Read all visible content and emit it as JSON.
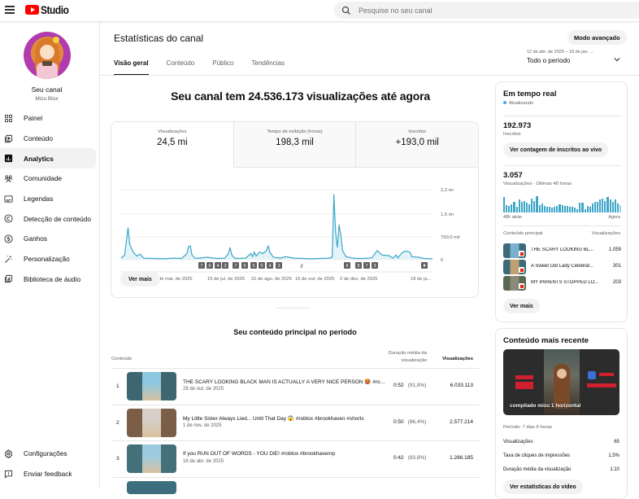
{
  "app": {
    "name": "Studio"
  },
  "search": {
    "placeholder": "Pesquise no seu canal"
  },
  "channel": {
    "label": "Seu canal",
    "handle": "Mizu Blox"
  },
  "sidebar": {
    "items": [
      {
        "label": "Painel",
        "icon": "dashboard-icon"
      },
      {
        "label": "Conteúdo",
        "icon": "content-icon"
      },
      {
        "label": "Analytics",
        "icon": "analytics-icon",
        "active": true
      },
      {
        "label": "Comunidade",
        "icon": "community-icon"
      },
      {
        "label": "Legendas",
        "icon": "subtitles-icon"
      },
      {
        "label": "Detecção de conteúdo",
        "icon": "copyright-icon"
      },
      {
        "label": "Ganhos",
        "icon": "earnings-icon"
      },
      {
        "label": "Personalização",
        "icon": "customization-icon"
      },
      {
        "label": "Biblioteca de áudio",
        "icon": "audio-library-icon"
      }
    ],
    "bottom": [
      {
        "label": "Configurações",
        "icon": "settings-icon"
      },
      {
        "label": "Enviar feedback",
        "icon": "feedback-icon"
      }
    ]
  },
  "header": {
    "title": "Estatísticas do canal",
    "tabs": [
      "Visão geral",
      "Conteúdo",
      "Público",
      "Tendências"
    ],
    "advanced_mode": "Modo avançado",
    "date_range": "12 de abr. de 2025 – 18 de jan. ...",
    "period": "Todo o período"
  },
  "overview": {
    "headline": "Seu canal tem 24.536.173 visualizações até agora",
    "metrics": [
      {
        "label": "Visualizações",
        "value": "24,5 mi"
      },
      {
        "label": "Tempo de exibição (horas)",
        "value": "198,3 mil"
      },
      {
        "label": "Inscritos",
        "value": "+193,0 mil"
      }
    ],
    "see_more": "Ver mais"
  },
  "chart_data": {
    "type": "area",
    "title": "Visualizações",
    "y_ticks": [
      "0",
      "750,0 mil",
      "1,5 mi",
      "2,3 mi"
    ],
    "ylim": [
      0,
      2300000
    ],
    "x_ticks": [
      "12 de ab...",
      "29 de mai. de 2025",
      "15 de jul. de 2025",
      "31 de ago. de 2025",
      "16 de out. de 2025",
      "2 de dez. de 2025",
      "18 de ja..."
    ],
    "series": [
      {
        "name": "Visualizações",
        "points": [
          [
            0,
            50000
          ],
          [
            2,
            150000
          ],
          [
            3,
            600000
          ],
          [
            4,
            1050000
          ],
          [
            5,
            500000
          ],
          [
            7,
            250000
          ],
          [
            9,
            120000
          ],
          [
            11,
            180000
          ],
          [
            13,
            50000
          ],
          [
            18,
            40000
          ],
          [
            25,
            30000
          ],
          [
            30,
            50000
          ],
          [
            35,
            40000
          ],
          [
            38,
            200000
          ],
          [
            39,
            430000
          ],
          [
            40,
            450000
          ],
          [
            41,
            150000
          ],
          [
            43,
            40000
          ],
          [
            50,
            80000
          ],
          [
            55,
            40000
          ],
          [
            60,
            50000
          ],
          [
            62,
            200000
          ],
          [
            63,
            400000
          ],
          [
            64,
            150000
          ],
          [
            66,
            40000
          ],
          [
            72,
            50000
          ],
          [
            75,
            200000
          ],
          [
            76,
            100000
          ],
          [
            77,
            250000
          ],
          [
            78,
            120000
          ],
          [
            80,
            250000
          ],
          [
            82,
            200000
          ],
          [
            84,
            300000
          ],
          [
            85,
            450000
          ],
          [
            86,
            250000
          ],
          [
            88,
            80000
          ],
          [
            92,
            50000
          ],
          [
            95,
            100000
          ],
          [
            97,
            80000
          ],
          [
            100,
            50000
          ],
          [
            105,
            40000
          ],
          [
            110,
            30000
          ],
          [
            115,
            40000
          ],
          [
            120,
            50000
          ],
          [
            122,
            80000
          ],
          [
            123,
            2150000
          ],
          [
            124,
            900000
          ],
          [
            125,
            400000
          ],
          [
            126,
            1150000
          ],
          [
            127,
            800000
          ],
          [
            128,
            300000
          ],
          [
            130,
            100000
          ],
          [
            135,
            40000
          ],
          [
            140,
            40000
          ],
          [
            145,
            60000
          ],
          [
            148,
            300000
          ],
          [
            149,
            250000
          ],
          [
            151,
            150000
          ],
          [
            155,
            130000
          ],
          [
            157,
            50000
          ],
          [
            159,
            150000
          ],
          [
            160,
            60000
          ],
          [
            162,
            200000
          ],
          [
            163,
            250000
          ],
          [
            165,
            280000
          ],
          [
            167,
            250000
          ],
          [
            168,
            100000
          ],
          [
            172,
            80000
          ],
          [
            175,
            40000
          ],
          [
            180,
            30000
          ]
        ]
      }
    ],
    "annotations": [
      "7",
      "6",
      "4",
      "3",
      "7",
      "5",
      "5",
      "5",
      "4",
      "3",
      "6",
      "8",
      "7",
      "3"
    ],
    "grid": true,
    "legend": "none"
  },
  "top_content": {
    "title": "Seu conteúdo principal no período",
    "columns": [
      "Conteúdo",
      "Duração média da visualização",
      "Visualizações"
    ],
    "rows": [
      {
        "rank": "1",
        "title": "THE SCARY LOOKING BLACK MAN IS ACTUALLY A VERY NICE PERSON 🥵 #robl...",
        "date": "28 de out. de 2025",
        "duration": "0:52",
        "pct": "(91,8%)",
        "views": "6.033.113"
      },
      {
        "rank": "2",
        "title": "My Little Sister Always Lied... Until That Day 😱 #roblox #brookhaven #shorts",
        "date": "1 de nov. de 2025",
        "duration": "0:50",
        "pct": "(86,4%)",
        "views": "2.577.214"
      },
      {
        "rank": "3",
        "title": "If you RUN OUT OF WORDS - YOU DIE! #roblox #brookhavenrp",
        "date": "16 de abr. de 2025",
        "duration": "0:42",
        "pct": "(83,8%)",
        "views": "1.286.185"
      }
    ]
  },
  "realtime": {
    "title": "Em tempo real",
    "status": "Atualizando",
    "subscribers": "192.973",
    "subscribers_label": "Inscritos",
    "live_count_button": "Ver contagem de inscritos ao vivo",
    "views": "3.057",
    "views_label": "Visualizações · Últimas 48 horas",
    "bars": [
      17,
      8,
      7,
      9,
      12,
      6,
      14,
      12,
      13,
      11,
      9,
      15,
      13,
      18,
      8,
      10,
      7,
      6,
      6,
      5,
      6,
      7,
      9,
      8,
      7,
      7,
      6,
      6,
      5,
      4,
      11,
      11,
      4,
      7,
      6,
      10,
      12,
      12,
      14,
      15,
      13,
      17,
      14,
      12,
      14,
      10,
      8
    ],
    "axis_start": "48h atrás",
    "axis_end": "Agora",
    "list_header_left": "Conteúdo principal",
    "list_header_right": "Visualizações",
    "items": [
      {
        "title": "THE SCARY LOOKING BL...",
        "views": "1.059"
      },
      {
        "title": "A Sweet Old Lady Celebrat...",
        "views": "301"
      },
      {
        "title": "MY PARENTS STOPPED LO...",
        "views": "203"
      }
    ],
    "see_more": "Ver mais"
  },
  "recent": {
    "title": "Conteúdo mais recente",
    "thumb_caption": "compilado mizu 1 horizontal",
    "period": "Período: 7 dias 6 horas",
    "stats": [
      {
        "label": "Visualizações",
        "value": "65"
      },
      {
        "label": "Taxa de cliques de impressões",
        "value": "1,5%"
      },
      {
        "label": "Duração média da visualização",
        "value": "1:10"
      }
    ],
    "button": "Ver estatísticas do vídeo"
  },
  "colors": {
    "accent": "#3ea6c8",
    "brand_red": "#ff0000",
    "live_dot": "#3ea6ff"
  }
}
